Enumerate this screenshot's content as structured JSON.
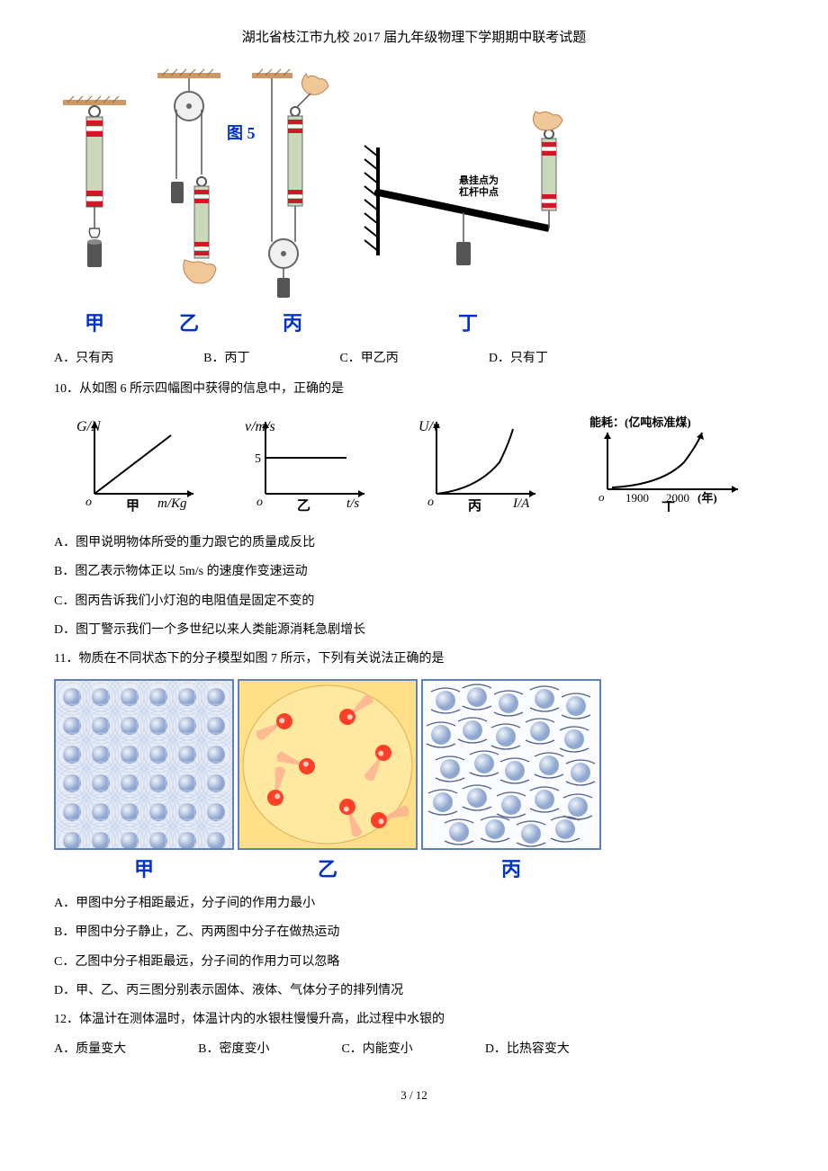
{
  "header": {
    "title": "湖北省枝江市九校 2017 届九年级物理下学期期中联考试题"
  },
  "figure5": {
    "label_text": "图 5",
    "sub_labels": [
      "甲",
      "乙",
      "丙",
      "丁"
    ],
    "lever_annotation_line1": "悬挂点为",
    "lever_annotation_line2": "杠杆中点",
    "colors": {
      "spring_body": "#c8d8b8",
      "spring_band1": "#d01828",
      "spring_band2": "#ffffff",
      "weight": "#555555",
      "hand": "#f0c898",
      "lever": "#000000",
      "hatch": "#000000",
      "pulley": "#888888"
    }
  },
  "q9_options": {
    "a": "A．只有丙",
    "b": "B．丙丁",
    "c": "C．甲乙丙",
    "d": "D．只有丁"
  },
  "q10": {
    "text": "10．从如图 6 所示四幅图中获得的信息中，正确的是",
    "graphs": {
      "g1": {
        "ylabel": "G/N",
        "xlabel": "m/Kg",
        "origin": "o",
        "type": "linear",
        "sublabel": "甲"
      },
      "g2": {
        "ylabel": "v/m/s",
        "xlabel": "t/s",
        "origin": "o",
        "yval": "5",
        "type": "constant",
        "sublabel": "乙"
      },
      "g3": {
        "ylabel": "U/v",
        "xlabel": "I/A",
        "origin": "o",
        "type": "curve_up",
        "sublabel": "丙"
      },
      "g4": {
        "ylabel": "能耗：(亿吨标准煤)",
        "xlabel": "(年)",
        "origin": "o",
        "xtick1": "1900",
        "xtick2": "2000",
        "type": "exp",
        "sublabel": "丁"
      }
    },
    "options": {
      "a": "A．图甲说明物体所受的重力跟它的质量成反比",
      "b": "B．图乙表示物体正以 5m/s 的速度作变速运动",
      "c": "C．图丙告诉我们小灯泡的电阻值是固定不变的",
      "d": "D．图丁警示我们一个多世纪以来人类能源消耗急剧增长"
    }
  },
  "q11": {
    "text": "11．物质在不同状态下的分子模型如图 7 所示，下列有关说法正确的是",
    "sublabels": [
      "甲",
      "乙",
      "丙"
    ],
    "colors": {
      "box_border": "#6080c0",
      "solid_mol": "#a8bce0",
      "solid_bg_wave": "#d8e0f0",
      "gas_bg": "#ffe088",
      "gas_mol_body": "#ff7040",
      "gas_mol_head": "#ff3020",
      "liquid_mol": "#a8bce0",
      "liquid_wave": "#555555"
    },
    "options": {
      "a": "A．甲图中分子相距最近，分子间的作用力最小",
      "b": "B．甲图中分子静止，乙、丙两图中分子在做热运动",
      "c": "C．乙图中分子相距最远，分子间的作用力可以忽略",
      "d": "D．甲、乙、丙三图分别表示固体、液体、气体分子的排列情况"
    }
  },
  "q12": {
    "text": "12．体温计在测体温时，体温计内的水银柱慢慢升高，此过程中水银的",
    "options": {
      "a": "A．质量变大",
      "b": "B．密度变小",
      "c": "C．内能变小",
      "d": "D．比热容变大"
    }
  },
  "footer": {
    "page": "3  /  12"
  }
}
